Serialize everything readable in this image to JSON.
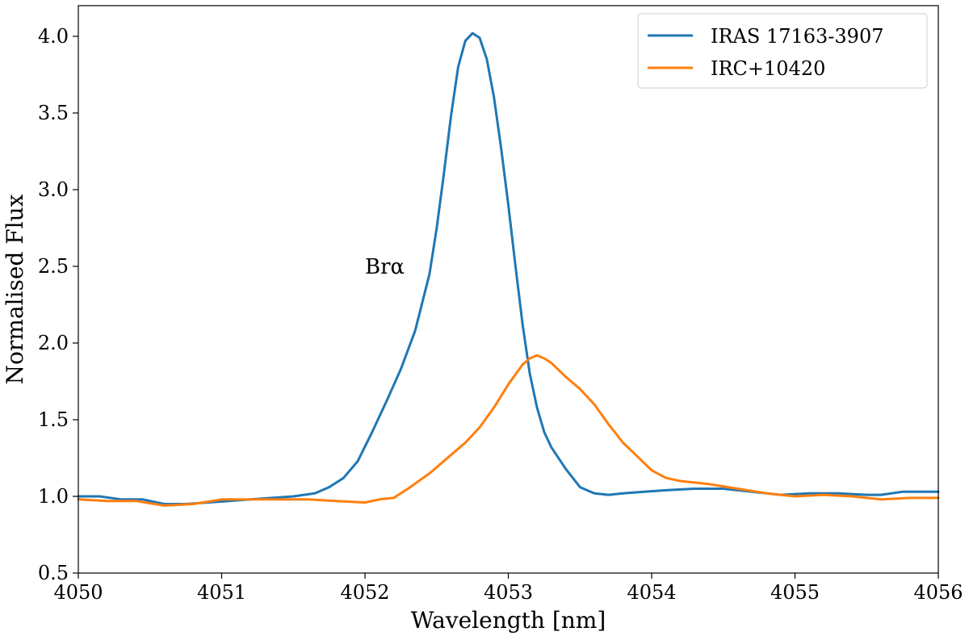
{
  "chart_data": {
    "type": "line",
    "xlabel": "Wavelength [nm]",
    "ylabel": "Normalised Flux",
    "xlim": [
      4050,
      4056
    ],
    "ylim": [
      0.5,
      4.2
    ],
    "xticks": [
      4050,
      4051,
      4052,
      4053,
      4054,
      4055,
      4056
    ],
    "yticks": [
      0.5,
      1.0,
      1.5,
      2.0,
      2.5,
      3.0,
      3.5,
      4.0
    ],
    "xtick_labels": [
      "4050",
      "4051",
      "4052",
      "4053",
      "4054",
      "4055",
      "4056"
    ],
    "ytick_labels": [
      "0.5",
      "1.0",
      "1.5",
      "2.0",
      "2.5",
      "3.0",
      "3.5",
      "4.0"
    ],
    "grid": false,
    "legend_position": "top-right",
    "annotation": {
      "text": "Brα",
      "x": 4052.0,
      "y": 2.5
    },
    "series": [
      {
        "name": "IRAS 17163-3907",
        "color": "#1f77b4",
        "x": [
          4050.0,
          4050.15,
          4050.3,
          4050.45,
          4050.6,
          4050.75,
          4050.9,
          4051.05,
          4051.2,
          4051.35,
          4051.5,
          4051.65,
          4051.75,
          4051.85,
          4051.95,
          4052.05,
          4052.15,
          4052.25,
          4052.35,
          4052.45,
          4052.5,
          4052.55,
          4052.6,
          4052.65,
          4052.7,
          4052.75,
          4052.8,
          4052.85,
          4052.9,
          4052.95,
          4053.0,
          4053.05,
          4053.1,
          4053.15,
          4053.2,
          4053.25,
          4053.3,
          4053.4,
          4053.5,
          4053.6,
          4053.7,
          4053.8,
          4053.95,
          4054.1,
          4054.3,
          4054.5,
          4054.7,
          4054.9,
          4055.1,
          4055.3,
          4055.5,
          4055.6,
          4055.75,
          4055.9,
          4056.0
        ],
        "y": [
          1.0,
          1.0,
          0.98,
          0.98,
          0.95,
          0.95,
          0.96,
          0.97,
          0.98,
          0.99,
          1.0,
          1.02,
          1.06,
          1.12,
          1.23,
          1.42,
          1.62,
          1.83,
          2.08,
          2.45,
          2.75,
          3.1,
          3.48,
          3.8,
          3.97,
          4.02,
          3.99,
          3.85,
          3.6,
          3.27,
          2.9,
          2.5,
          2.12,
          1.8,
          1.58,
          1.42,
          1.32,
          1.18,
          1.06,
          1.02,
          1.01,
          1.02,
          1.03,
          1.04,
          1.05,
          1.05,
          1.03,
          1.01,
          1.02,
          1.02,
          1.01,
          1.01,
          1.03,
          1.03,
          1.03
        ]
      },
      {
        "name": "IRC+10420",
        "color": "#ff7f0e",
        "x": [
          4050.0,
          4050.2,
          4050.4,
          4050.6,
          4050.8,
          4051.0,
          4051.2,
          4051.4,
          4051.6,
          4051.8,
          4052.0,
          4052.1,
          4052.2,
          4052.3,
          4052.45,
          4052.6,
          4052.7,
          4052.8,
          4052.9,
          4053.0,
          4053.1,
          4053.15,
          4053.2,
          4053.25,
          4053.3,
          4053.4,
          4053.5,
          4053.6,
          4053.7,
          4053.8,
          4053.9,
          4054.0,
          4054.1,
          4054.2,
          4054.4,
          4054.6,
          4054.8,
          4055.0,
          4055.2,
          4055.4,
          4055.6,
          4055.8,
          4056.0
        ],
        "y": [
          0.98,
          0.97,
          0.97,
          0.94,
          0.95,
          0.98,
          0.98,
          0.98,
          0.98,
          0.97,
          0.96,
          0.98,
          0.99,
          1.05,
          1.15,
          1.27,
          1.35,
          1.45,
          1.58,
          1.73,
          1.86,
          1.9,
          1.92,
          1.9,
          1.87,
          1.78,
          1.7,
          1.6,
          1.47,
          1.35,
          1.26,
          1.17,
          1.12,
          1.1,
          1.08,
          1.05,
          1.02,
          1.0,
          1.01,
          1.0,
          0.98,
          0.99,
          0.99
        ]
      }
    ]
  }
}
